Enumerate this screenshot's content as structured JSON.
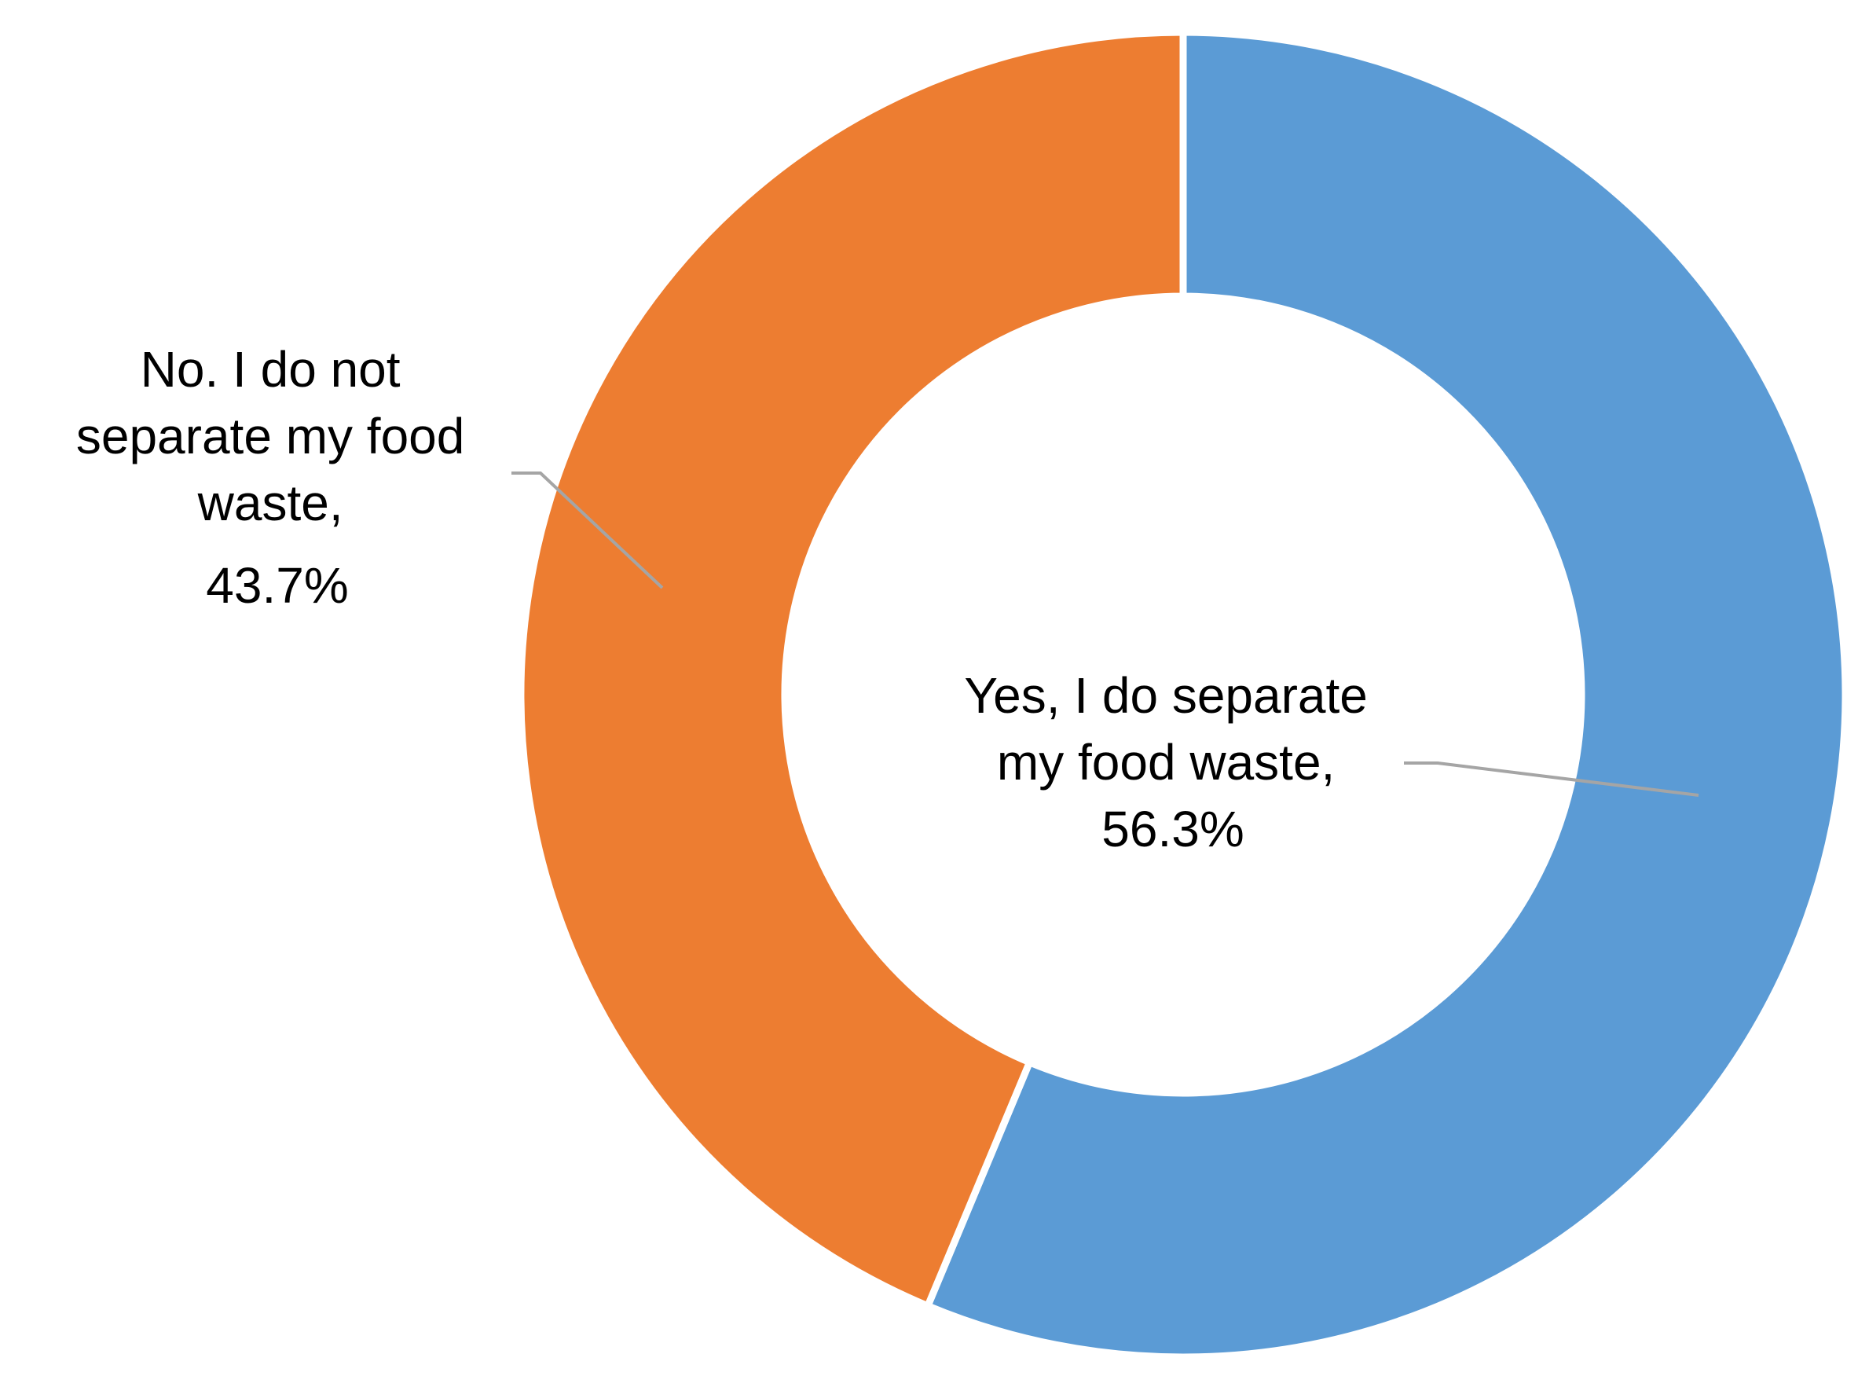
{
  "chart_data": {
    "type": "pie",
    "variant": "donut",
    "title": "",
    "slices": [
      {
        "label_lines": [
          "Yes, I do separate",
          "my food waste,",
          "56.3%"
        ],
        "value": 56.3,
        "color": "#5B9BD5"
      },
      {
        "label_lines": [
          "No. I do not",
          "separate my food",
          "waste,",
          "43.7%"
        ],
        "value": 43.7,
        "color": "#ED7D31"
      }
    ],
    "legend": "none",
    "start_angle": "12 o'clock",
    "direction": "clockwise",
    "leader_line_color": "#A5A5A5"
  }
}
